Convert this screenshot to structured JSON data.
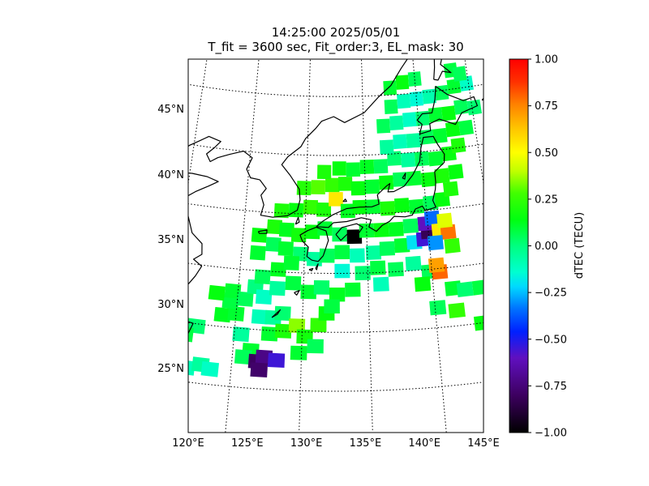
{
  "title": {
    "line1": "14:25:00 2025/05/01",
    "line2": "T_fit = 3600 sec, Fit_order:3, EL_mask: 30"
  },
  "map": {
    "lon_range": [
      120,
      145
    ],
    "lat_range": [
      20,
      49
    ],
    "lon_ticks": [
      {
        "value": 120,
        "label": "120°E"
      },
      {
        "value": 125,
        "label": "125°E"
      },
      {
        "value": 130,
        "label": "130°E"
      },
      {
        "value": 135,
        "label": "135°E"
      },
      {
        "value": 140,
        "label": "140°E"
      },
      {
        "value": 145,
        "label": "145°E"
      }
    ],
    "lat_ticks": [
      {
        "value": 45,
        "label": "45°N"
      },
      {
        "value": 40,
        "label": "40°N"
      },
      {
        "value": 35,
        "label": "35°N"
      },
      {
        "value": 30,
        "label": "30°N"
      },
      {
        "value": 25,
        "label": "25°N"
      }
    ],
    "gridlines": "dotted",
    "coastline_color": "#000000"
  },
  "colorbar": {
    "label": "dTEC (TECU)",
    "range": [
      -1.0,
      1.0
    ],
    "colormap": "gist_ncar-like",
    "ticks": [
      "1.00",
      "0.75",
      "0.50",
      "0.25",
      "0.00",
      "−0.25",
      "−0.50",
      "−0.75",
      "−1.00"
    ]
  },
  "data_cells": [
    {
      "lon": 121.8,
      "lat": 21.2,
      "v": -0.1
    },
    {
      "lon": 122.8,
      "lat": 21.6,
      "v": -0.05
    },
    {
      "lon": 123.5,
      "lat": 21.3,
      "v": -0.12
    },
    {
      "lon": 121.0,
      "lat": 24.8,
      "v": 0.05
    },
    {
      "lon": 122.2,
      "lat": 24.8,
      "v": 0.02
    },
    {
      "lon": 121.4,
      "lat": 24.0,
      "v": 0.08
    },
    {
      "lon": 124.0,
      "lat": 26.0,
      "v": 0.12
    },
    {
      "lon": 125.0,
      "lat": 26.2,
      "v": 0.1
    },
    {
      "lon": 124.5,
      "lat": 27.2,
      "v": 0.08
    },
    {
      "lon": 123.4,
      "lat": 27.8,
      "v": 0.15
    },
    {
      "lon": 124.6,
      "lat": 28.1,
      "v": 0.1
    },
    {
      "lon": 125.6,
      "lat": 27.5,
      "v": 0.05
    },
    {
      "lon": 126.3,
      "lat": 28.6,
      "v": 0.0
    },
    {
      "lon": 127.0,
      "lat": 27.8,
      "v": -0.12
    },
    {
      "lon": 128.0,
      "lat": 28.6,
      "v": -0.05
    },
    {
      "lon": 126.8,
      "lat": 26.1,
      "v": -0.1
    },
    {
      "lon": 127.8,
      "lat": 26.1,
      "v": -0.05
    },
    {
      "lon": 128.5,
      "lat": 26.5,
      "v": 0.02
    },
    {
      "lon": 127.6,
      "lat": 24.7,
      "v": 0.1
    },
    {
      "lon": 128.6,
      "lat": 25.0,
      "v": 0.2
    },
    {
      "lon": 129.6,
      "lat": 25.5,
      "v": 0.35
    },
    {
      "lon": 130.2,
      "lat": 24.6,
      "v": 0.18
    },
    {
      "lon": 131.2,
      "lat": 25.6,
      "v": 0.25
    },
    {
      "lon": 131.8,
      "lat": 26.6,
      "v": 0.15
    },
    {
      "lon": 125.5,
      "lat": 24.5,
      "v": -0.05
    },
    {
      "lon": 126.3,
      "lat": 23.2,
      "v": 0.1
    },
    {
      "lon": 125.8,
      "lat": 22.6,
      "v": 0.05
    },
    {
      "lon": 126.8,
      "lat": 22.3,
      "v": -0.8
    },
    {
      "lon": 127.3,
      "lat": 22.7,
      "v": -0.72
    },
    {
      "lon": 127.0,
      "lat": 21.6,
      "v": -0.78
    },
    {
      "lon": 128.2,
      "lat": 22.5,
      "v": -0.55
    },
    {
      "lon": 129.8,
      "lat": 23.2,
      "v": 0.1
    },
    {
      "lon": 131.0,
      "lat": 23.8,
      "v": 0.05
    },
    {
      "lon": 126.8,
      "lat": 29.5,
      "v": 0.05
    },
    {
      "lon": 128.0,
      "lat": 30.2,
      "v": 0.12
    },
    {
      "lon": 129.2,
      "lat": 29.1,
      "v": 0.08
    },
    {
      "lon": 130.4,
      "lat": 28.4,
      "v": 0.1
    },
    {
      "lon": 131.4,
      "lat": 28.8,
      "v": 0.03
    },
    {
      "lon": 132.6,
      "lat": 28.2,
      "v": 0.12
    },
    {
      "lon": 133.8,
      "lat": 28.6,
      "v": 0.1
    },
    {
      "lon": 133.0,
      "lat": 30.2,
      "v": -0.15
    },
    {
      "lon": 134.6,
      "lat": 30.0,
      "v": 0.02
    },
    {
      "lon": 135.8,
      "lat": 30.4,
      "v": 0.08
    },
    {
      "lon": 137.2,
      "lat": 30.2,
      "v": 0.05
    },
    {
      "lon": 138.6,
      "lat": 30.6,
      "v": -0.05
    },
    {
      "lon": 139.8,
      "lat": 29.8,
      "v": 0.05
    },
    {
      "lon": 140.6,
      "lat": 29.7,
      "v": 0.8
    },
    {
      "lon": 140.4,
      "lat": 30.3,
      "v": 0.7
    },
    {
      "lon": 141.5,
      "lat": 28.2,
      "v": 0.1
    },
    {
      "lon": 142.4,
      "lat": 28.0,
      "v": 0.02
    },
    {
      "lon": 143.6,
      "lat": 28.0,
      "v": 0.08
    },
    {
      "lon": 140.2,
      "lat": 26.7,
      "v": 0.05
    },
    {
      "lon": 141.6,
      "lat": 26.3,
      "v": 0.25
    },
    {
      "lon": 143.4,
      "lat": 25.0,
      "v": 0.15
    },
    {
      "lon": 139.2,
      "lat": 28.8,
      "v": 0.15
    },
    {
      "lon": 144.6,
      "lat": 27.0,
      "v": -0.1
    },
    {
      "lon": 126.3,
      "lat": 31.5,
      "v": 0.1
    },
    {
      "lon": 127.5,
      "lat": 32.3,
      "v": 0.05
    },
    {
      "lon": 128.5,
      "lat": 32.0,
      "v": 0.1
    },
    {
      "lon": 129.7,
      "lat": 31.6,
      "v": 0.02
    },
    {
      "lon": 130.8,
      "lat": 31.2,
      "v": -0.05
    },
    {
      "lon": 131.8,
      "lat": 31.5,
      "v": 0.05
    },
    {
      "lon": 133.0,
      "lat": 31.8,
      "v": 0.08
    },
    {
      "lon": 134.2,
      "lat": 31.5,
      "v": -0.1
    },
    {
      "lon": 135.5,
      "lat": 31.7,
      "v": -0.05
    },
    {
      "lon": 136.6,
      "lat": 32.0,
      "v": 0.05
    },
    {
      "lon": 137.8,
      "lat": 32.2,
      "v": 0.1
    },
    {
      "lon": 138.8,
      "lat": 32.4,
      "v": -0.2
    },
    {
      "lon": 139.6,
      "lat": 32.6,
      "v": -0.55
    },
    {
      "lon": 140.0,
      "lat": 33.2,
      "v": -0.82
    },
    {
      "lon": 139.8,
      "lat": 33.9,
      "v": -0.6
    },
    {
      "lon": 140.4,
      "lat": 34.3,
      "v": -0.35
    },
    {
      "lon": 140.9,
      "lat": 33.2,
      "v": 0.55
    },
    {
      "lon": 141.6,
      "lat": 33.0,
      "v": 0.78
    },
    {
      "lon": 141.4,
      "lat": 34.0,
      "v": 0.45
    },
    {
      "lon": 140.5,
      "lat": 32.2,
      "v": -0.3
    },
    {
      "lon": 141.8,
      "lat": 31.8,
      "v": 0.25
    },
    {
      "lon": 126.3,
      "lat": 33.0,
      "v": 0.15
    },
    {
      "lon": 127.5,
      "lat": 33.8,
      "v": 0.2
    },
    {
      "lon": 128.5,
      "lat": 33.6,
      "v": 0.12
    },
    {
      "lon": 129.5,
      "lat": 33.2,
      "v": 0.18
    },
    {
      "lon": 130.6,
      "lat": 33.5,
      "v": 0.15
    },
    {
      "lon": 131.6,
      "lat": 33.8,
      "v": 0.1
    },
    {
      "lon": 132.8,
      "lat": 33.3,
      "v": 0.05
    },
    {
      "lon": 134.0,
      "lat": 33.1,
      "v": -1.0
    },
    {
      "lon": 135.0,
      "lat": 33.6,
      "v": 0.1
    },
    {
      "lon": 136.2,
      "lat": 33.6,
      "v": 0.15
    },
    {
      "lon": 137.4,
      "lat": 33.6,
      "v": 0.12
    },
    {
      "lon": 138.6,
      "lat": 33.8,
      "v": 0.05
    },
    {
      "lon": 128.0,
      "lat": 35.2,
      "v": 0.2
    },
    {
      "lon": 129.2,
      "lat": 35.3,
      "v": 0.15
    },
    {
      "lon": 130.4,
      "lat": 35.6,
      "v": 0.25
    },
    {
      "lon": 131.5,
      "lat": 35.4,
      "v": 0.2
    },
    {
      "lon": 132.5,
      "lat": 36.3,
      "v": 0.55
    },
    {
      "lon": 133.5,
      "lat": 35.3,
      "v": 0.12
    },
    {
      "lon": 134.5,
      "lat": 35.6,
      "v": 0.15
    },
    {
      "lon": 135.6,
      "lat": 35.6,
      "v": 0.1
    },
    {
      "lon": 136.8,
      "lat": 35.4,
      "v": 0.2
    },
    {
      "lon": 138.0,
      "lat": 35.6,
      "v": 0.15
    },
    {
      "lon": 139.2,
      "lat": 35.4,
      "v": 0.1
    },
    {
      "lon": 140.4,
      "lat": 35.6,
      "v": 0.05
    },
    {
      "lon": 141.4,
      "lat": 35.8,
      "v": 0.15
    },
    {
      "lon": 142.2,
      "lat": 36.6,
      "v": 0.2
    },
    {
      "lon": 129.8,
      "lat": 37.2,
      "v": 0.22
    },
    {
      "lon": 131.0,
      "lat": 37.3,
      "v": 0.3
    },
    {
      "lon": 132.2,
      "lat": 37.5,
      "v": 0.25
    },
    {
      "lon": 133.3,
      "lat": 37.6,
      "v": 0.2
    },
    {
      "lon": 134.4,
      "lat": 37.2,
      "v": 0.15
    },
    {
      "lon": 135.6,
      "lat": 37.3,
      "v": 0.1
    },
    {
      "lon": 136.8,
      "lat": 37.6,
      "v": 0.15
    },
    {
      "lon": 138.0,
      "lat": 37.8,
      "v": 0.05
    },
    {
      "lon": 139.2,
      "lat": 37.8,
      "v": 0.1
    },
    {
      "lon": 140.4,
      "lat": 37.6,
      "v": 0.15
    },
    {
      "lon": 141.6,
      "lat": 37.8,
      "v": 0.2
    },
    {
      "lon": 142.8,
      "lat": 38.0,
      "v": 0.15
    },
    {
      "lon": 131.5,
      "lat": 38.6,
      "v": 0.2
    },
    {
      "lon": 132.8,
      "lat": 38.9,
      "v": 0.15
    },
    {
      "lon": 134.0,
      "lat": 38.8,
      "v": 0.1
    },
    {
      "lon": 135.2,
      "lat": 39.0,
      "v": 0.12
    },
    {
      "lon": 136.4,
      "lat": 39.0,
      "v": 0.05
    },
    {
      "lon": 137.6,
      "lat": 39.6,
      "v": 0.02
    },
    {
      "lon": 138.8,
      "lat": 39.4,
      "v": -0.05
    },
    {
      "lon": 140.0,
      "lat": 39.4,
      "v": 0.05
    },
    {
      "lon": 141.2,
      "lat": 39.3,
      "v": 0.1
    },
    {
      "lon": 142.4,
      "lat": 39.6,
      "v": 0.15
    },
    {
      "lon": 143.3,
      "lat": 40.2,
      "v": 0.2
    },
    {
      "lon": 137.0,
      "lat": 40.6,
      "v": -0.05
    },
    {
      "lon": 138.2,
      "lat": 41.0,
      "v": -0.1
    },
    {
      "lon": 139.4,
      "lat": 41.0,
      "v": -0.05
    },
    {
      "lon": 140.6,
      "lat": 41.2,
      "v": 0.05
    },
    {
      "lon": 141.8,
      "lat": 41.2,
      "v": 0.1
    },
    {
      "lon": 143.0,
      "lat": 41.6,
      "v": 0.15
    },
    {
      "lon": 144.2,
      "lat": 41.6,
      "v": 0.08
    },
    {
      "lon": 136.8,
      "lat": 42.4,
      "v": 0.05
    },
    {
      "lon": 138.0,
      "lat": 42.6,
      "v": -0.05
    },
    {
      "lon": 139.2,
      "lat": 42.8,
      "v": -0.12
    },
    {
      "lon": 140.4,
      "lat": 42.8,
      "v": 0.02
    },
    {
      "lon": 141.6,
      "lat": 43.0,
      "v": 0.1
    },
    {
      "lon": 142.8,
      "lat": 43.0,
      "v": 0.15
    },
    {
      "lon": 144.0,
      "lat": 43.4,
      "v": 0.05
    },
    {
      "lon": 145.2,
      "lat": 43.2,
      "v": 0.02
    },
    {
      "lon": 137.6,
      "lat": 44.0,
      "v": 0.05
    },
    {
      "lon": 138.8,
      "lat": 44.4,
      "v": -0.1
    },
    {
      "lon": 140.0,
      "lat": 44.5,
      "v": -0.15
    },
    {
      "lon": 141.2,
      "lat": 44.6,
      "v": -0.08
    },
    {
      "lon": 142.4,
      "lat": 44.8,
      "v": 0.05
    },
    {
      "lon": 143.6,
      "lat": 45.2,
      "v": 0.1
    },
    {
      "lon": 144.8,
      "lat": 45.3,
      "v": -0.12
    },
    {
      "lon": 137.6,
      "lat": 45.6,
      "v": 0.1
    },
    {
      "lon": 138.8,
      "lat": 46.0,
      "v": 0.15
    },
    {
      "lon": 140.0,
      "lat": 46.2,
      "v": 0.05
    },
    {
      "lon": 143.5,
      "lat": 46.6,
      "v": 0.08
    },
    {
      "lon": 144.3,
      "lat": 46.2,
      "v": 0.05
    },
    {
      "lon": 129.0,
      "lat": 30.8,
      "v": 0.1
    },
    {
      "lon": 136.0,
      "lat": 29.0,
      "v": -0.1
    },
    {
      "lon": 132.2,
      "lat": 27.2,
      "v": 0.08
    }
  ]
}
